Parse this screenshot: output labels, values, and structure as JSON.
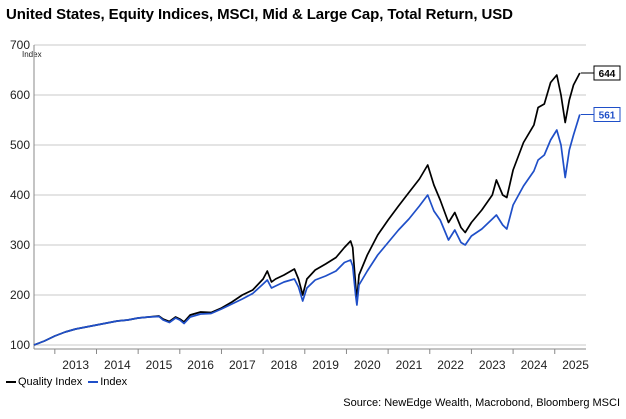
{
  "chart_data": {
    "type": "line",
    "title": "United States, Equity Indices, MSCI, Mid & Large Cap, Total Return, USD",
    "ylabel": "Index",
    "ylim": [
      100,
      700
    ],
    "yticks": [
      100,
      200,
      300,
      400,
      500,
      600,
      700
    ],
    "xlim": [
      2012.5,
      2025.75
    ],
    "xticks": [
      "2013",
      "2014",
      "2015",
      "2016",
      "2017",
      "2018",
      "2019",
      "2020",
      "2021",
      "2022",
      "2023",
      "2024",
      "2025"
    ],
    "grid": "horizontal",
    "legend_position": "bottom-left",
    "source": "Source: NewEdge Wealth, Macrobond, Bloomberg MSCI",
    "series": [
      {
        "name": "Quality Index",
        "color": "#000000",
        "end_label": "644",
        "points": [
          [
            2012.5,
            100
          ],
          [
            2012.75,
            108
          ],
          [
            2013.0,
            118
          ],
          [
            2013.25,
            126
          ],
          [
            2013.5,
            132
          ],
          [
            2013.75,
            136
          ],
          [
            2014.0,
            140
          ],
          [
            2014.25,
            144
          ],
          [
            2014.5,
            148
          ],
          [
            2014.75,
            150
          ],
          [
            2015.0,
            154
          ],
          [
            2015.25,
            156
          ],
          [
            2015.5,
            158
          ],
          [
            2015.6,
            152
          ],
          [
            2015.75,
            147
          ],
          [
            2015.9,
            156
          ],
          [
            2016.0,
            152
          ],
          [
            2016.1,
            146
          ],
          [
            2016.25,
            160
          ],
          [
            2016.5,
            166
          ],
          [
            2016.75,
            165
          ],
          [
            2017.0,
            174
          ],
          [
            2017.25,
            186
          ],
          [
            2017.5,
            200
          ],
          [
            2017.75,
            210
          ],
          [
            2018.0,
            232
          ],
          [
            2018.1,
            248
          ],
          [
            2018.2,
            226
          ],
          [
            2018.3,
            232
          ],
          [
            2018.5,
            240
          ],
          [
            2018.75,
            252
          ],
          [
            2018.85,
            232
          ],
          [
            2018.95,
            200
          ],
          [
            2019.05,
            232
          ],
          [
            2019.25,
            250
          ],
          [
            2019.5,
            262
          ],
          [
            2019.75,
            275
          ],
          [
            2019.95,
            295
          ],
          [
            2020.1,
            308
          ],
          [
            2020.15,
            295
          ],
          [
            2020.22,
            220
          ],
          [
            2020.25,
            190
          ],
          [
            2020.3,
            240
          ],
          [
            2020.5,
            280
          ],
          [
            2020.75,
            320
          ],
          [
            2021.0,
            350
          ],
          [
            2021.25,
            378
          ],
          [
            2021.5,
            405
          ],
          [
            2021.75,
            432
          ],
          [
            2021.95,
            460
          ],
          [
            2022.1,
            420
          ],
          [
            2022.25,
            390
          ],
          [
            2022.45,
            345
          ],
          [
            2022.6,
            365
          ],
          [
            2022.75,
            335
          ],
          [
            2022.85,
            325
          ],
          [
            2023.0,
            345
          ],
          [
            2023.25,
            370
          ],
          [
            2023.5,
            400
          ],
          [
            2023.6,
            430
          ],
          [
            2023.75,
            400
          ],
          [
            2023.85,
            395
          ],
          [
            2024.0,
            450
          ],
          [
            2024.25,
            505
          ],
          [
            2024.5,
            540
          ],
          [
            2024.6,
            575
          ],
          [
            2024.75,
            582
          ],
          [
            2024.9,
            625
          ],
          [
            2025.05,
            640
          ],
          [
            2025.15,
            600
          ],
          [
            2025.25,
            545
          ],
          [
            2025.35,
            590
          ],
          [
            2025.45,
            620
          ],
          [
            2025.6,
            644
          ]
        ]
      },
      {
        "name": "Index",
        "color": "#1f4fc8",
        "end_label": "561",
        "points": [
          [
            2012.5,
            100
          ],
          [
            2012.75,
            108
          ],
          [
            2013.0,
            118
          ],
          [
            2013.25,
            126
          ],
          [
            2013.5,
            132
          ],
          [
            2013.75,
            136
          ],
          [
            2014.0,
            140
          ],
          [
            2014.25,
            144
          ],
          [
            2014.5,
            148
          ],
          [
            2014.75,
            150
          ],
          [
            2015.0,
            154
          ],
          [
            2015.25,
            156
          ],
          [
            2015.5,
            157
          ],
          [
            2015.6,
            150
          ],
          [
            2015.75,
            145
          ],
          [
            2015.9,
            154
          ],
          [
            2016.0,
            150
          ],
          [
            2016.1,
            143
          ],
          [
            2016.25,
            156
          ],
          [
            2016.5,
            162
          ],
          [
            2016.75,
            163
          ],
          [
            2017.0,
            172
          ],
          [
            2017.25,
            182
          ],
          [
            2017.5,
            192
          ],
          [
            2017.75,
            203
          ],
          [
            2018.0,
            222
          ],
          [
            2018.1,
            230
          ],
          [
            2018.2,
            214
          ],
          [
            2018.3,
            218
          ],
          [
            2018.5,
            226
          ],
          [
            2018.75,
            232
          ],
          [
            2018.85,
            216
          ],
          [
            2018.95,
            188
          ],
          [
            2019.05,
            214
          ],
          [
            2019.25,
            230
          ],
          [
            2019.5,
            238
          ],
          [
            2019.75,
            248
          ],
          [
            2019.95,
            265
          ],
          [
            2020.1,
            270
          ],
          [
            2020.15,
            258
          ],
          [
            2020.22,
            200
          ],
          [
            2020.25,
            180
          ],
          [
            2020.3,
            220
          ],
          [
            2020.5,
            248
          ],
          [
            2020.75,
            280
          ],
          [
            2021.0,
            305
          ],
          [
            2021.25,
            330
          ],
          [
            2021.5,
            352
          ],
          [
            2021.75,
            378
          ],
          [
            2021.95,
            400
          ],
          [
            2022.1,
            368
          ],
          [
            2022.25,
            350
          ],
          [
            2022.45,
            310
          ],
          [
            2022.6,
            330
          ],
          [
            2022.75,
            305
          ],
          [
            2022.85,
            300
          ],
          [
            2023.0,
            318
          ],
          [
            2023.25,
            332
          ],
          [
            2023.5,
            352
          ],
          [
            2023.6,
            360
          ],
          [
            2023.75,
            340
          ],
          [
            2023.85,
            332
          ],
          [
            2024.0,
            380
          ],
          [
            2024.25,
            418
          ],
          [
            2024.5,
            448
          ],
          [
            2024.6,
            470
          ],
          [
            2024.75,
            480
          ],
          [
            2024.9,
            510
          ],
          [
            2025.05,
            530
          ],
          [
            2025.15,
            500
          ],
          [
            2025.25,
            435
          ],
          [
            2025.35,
            490
          ],
          [
            2025.45,
            520
          ],
          [
            2025.6,
            561
          ]
        ]
      }
    ]
  }
}
